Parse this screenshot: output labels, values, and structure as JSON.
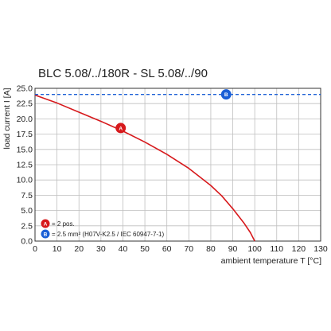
{
  "chart_data": {
    "type": "line",
    "title": "BLC 5.08/../180R - SL 5.08/../90",
    "xlabel": "ambient temperature T [°C]",
    "ylabel": "load current I [A]",
    "xlim": [
      0,
      130
    ],
    "ylim": [
      0,
      25
    ],
    "x_ticks": [
      "0",
      "10",
      "20",
      "30",
      "40",
      "50",
      "60",
      "70",
      "80",
      "90",
      "100",
      "110",
      "120",
      "130"
    ],
    "y_ticks": [
      "0.0",
      "2.5",
      "5.0",
      "7.5",
      "10.0",
      "12.5",
      "15.0",
      "17.5",
      "20.0",
      "22.5",
      "25.0"
    ],
    "grid": true,
    "series": [
      {
        "name": "A",
        "label": "= 2 pos.",
        "color": "#d7191c",
        "style": "solid",
        "x": [
          0,
          10,
          20,
          30,
          40,
          50,
          60,
          70,
          80,
          85,
          90,
          95,
          98,
          100
        ],
        "y": [
          23.9,
          22.6,
          21.1,
          19.6,
          18.0,
          16.2,
          14.2,
          11.9,
          9.1,
          7.4,
          5.3,
          3.0,
          1.4,
          0.0
        ]
      },
      {
        "name": "B",
        "label": "= 2.5 mm² (H07V-K2.5 / IEC 60947-7-1)",
        "color": "#1a5fd6",
        "style": "dashed",
        "x": [
          0,
          130
        ],
        "y": [
          24,
          24
        ]
      }
    ],
    "annotations": [
      {
        "series": "A",
        "text": "A",
        "x": 39,
        "y": 18.5
      },
      {
        "series": "B",
        "text": "B",
        "x": 87,
        "y": 24
      }
    ],
    "legend": [
      {
        "marker": "A",
        "text": "= 2 pos.",
        "color": "#d7191c"
      },
      {
        "marker": "B",
        "text": "= 2.5 mm² (H07V-K2.5 / IEC 60947-7-1)",
        "color": "#1a5fd6"
      }
    ],
    "legend_position": "bottom-left"
  }
}
